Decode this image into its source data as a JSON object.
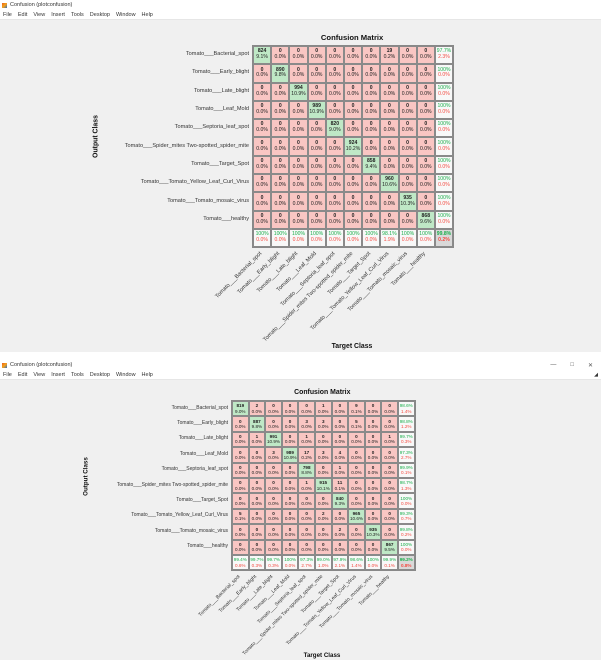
{
  "windows": [
    {
      "title": "Confusion (plotconfusion)",
      "menu": [
        "File",
        "Edit",
        "View",
        "Insert",
        "Tools",
        "Desktop",
        "Window",
        "Help"
      ],
      "controls": [],
      "chart_title": "Confusion Matrix",
      "ylabel": "Output Class",
      "xlabel": "Target Class"
    },
    {
      "title": "Confusion (plotconfusion)",
      "menu": [
        "File",
        "Edit",
        "View",
        "Insert",
        "Tools",
        "Desktop",
        "Window",
        "Help"
      ],
      "controls": [
        "—",
        "□",
        "✕"
      ],
      "chart_title": "Confusion Matrix",
      "ylabel": "Output Class",
      "xlabel": "Target Class"
    }
  ],
  "classes": [
    "Tomato___Bacterial_spot",
    "Tomato___Early_blight",
    "Tomato___Late_blight",
    "Tomato___Leaf_Mold",
    "Tomato___Septoria_leaf_spot",
    "Tomato___Spider_mites Two-spotted_spider_mite",
    "Tomato___Target_Spot",
    "Tomato___Tomato_Yellow_Leaf_Curl_Virus",
    "Tomato___Tomato_mosaic_virus",
    "Tomato___healthy"
  ],
  "colors": {
    "diag": "#bfe8c6",
    "off": "#f9c6c3",
    "good": "#1aaf4b",
    "bad": "#f44b41"
  },
  "chart_data": [
    {
      "type": "heatmap",
      "title": "Confusion Matrix",
      "xlabel": "Target Class",
      "ylabel": "Output Class",
      "matrix": [
        [
          824,
          0,
          0,
          0,
          0,
          0,
          0,
          19,
          0,
          0
        ],
        [
          0,
          890,
          0,
          0,
          0,
          0,
          0,
          0,
          0,
          0
        ],
        [
          0,
          0,
          994,
          0,
          0,
          0,
          0,
          0,
          0,
          0
        ],
        [
          0,
          0,
          0,
          989,
          0,
          0,
          0,
          0,
          0,
          0
        ],
        [
          0,
          0,
          0,
          0,
          820,
          0,
          0,
          0,
          0,
          0
        ],
        [
          0,
          0,
          0,
          0,
          0,
          924,
          0,
          0,
          0,
          0
        ],
        [
          0,
          0,
          0,
          0,
          0,
          0,
          858,
          0,
          0,
          0
        ],
        [
          0,
          0,
          0,
          0,
          0,
          0,
          0,
          960,
          0,
          0
        ],
        [
          0,
          0,
          0,
          0,
          0,
          0,
          0,
          0,
          935,
          0
        ],
        [
          0,
          0,
          0,
          0,
          0,
          0,
          0,
          0,
          0,
          868
        ]
      ],
      "pct": [
        [
          "9.1%",
          "0.0%",
          "0.0%",
          "0.0%",
          "0.0%",
          "0.0%",
          "0.0%",
          "0.2%",
          "0.0%",
          "0.0%"
        ],
        [
          "0.0%",
          "9.8%",
          "0.0%",
          "0.0%",
          "0.0%",
          "0.0%",
          "0.0%",
          "0.0%",
          "0.0%",
          "0.0%"
        ],
        [
          "0.0%",
          "0.0%",
          "10.9%",
          "0.0%",
          "0.0%",
          "0.0%",
          "0.0%",
          "0.0%",
          "0.0%",
          "0.0%"
        ],
        [
          "0.0%",
          "0.0%",
          "0.0%",
          "10.9%",
          "0.0%",
          "0.0%",
          "0.0%",
          "0.0%",
          "0.0%",
          "0.0%"
        ],
        [
          "0.0%",
          "0.0%",
          "0.0%",
          "0.0%",
          "9.0%",
          "0.0%",
          "0.0%",
          "0.0%",
          "0.0%",
          "0.0%"
        ],
        [
          "0.0%",
          "0.0%",
          "0.0%",
          "0.0%",
          "0.0%",
          "10.2%",
          "0.0%",
          "0.0%",
          "0.0%",
          "0.0%"
        ],
        [
          "0.0%",
          "0.0%",
          "0.0%",
          "0.0%",
          "0.0%",
          "0.0%",
          "9.4%",
          "0.0%",
          "0.0%",
          "0.0%"
        ],
        [
          "0.0%",
          "0.0%",
          "0.0%",
          "0.0%",
          "0.0%",
          "0.0%",
          "0.0%",
          "10.6%",
          "0.0%",
          "0.0%"
        ],
        [
          "0.0%",
          "0.0%",
          "0.0%",
          "0.0%",
          "0.0%",
          "0.0%",
          "0.0%",
          "0.0%",
          "10.3%",
          "0.0%"
        ],
        [
          "0.0%",
          "0.0%",
          "0.0%",
          "0.0%",
          "0.0%",
          "0.0%",
          "0.0%",
          "0.0%",
          "0.0%",
          "9.6%"
        ]
      ],
      "row_summary": [
        [
          "97.7%",
          "2.3%"
        ],
        [
          "100%",
          "0.0%"
        ],
        [
          "100%",
          "0.0%"
        ],
        [
          "100%",
          "0.0%"
        ],
        [
          "100%",
          "0.0%"
        ],
        [
          "100%",
          "0.0%"
        ],
        [
          "100%",
          "0.0%"
        ],
        [
          "100%",
          "0.0%"
        ],
        [
          "100%",
          "0.0%"
        ],
        [
          "100%",
          "0.0%"
        ]
      ],
      "col_summary": [
        [
          "100%",
          "0.0%"
        ],
        [
          "100%",
          "0.0%"
        ],
        [
          "100%",
          "0.0%"
        ],
        [
          "100%",
          "0.0%"
        ],
        [
          "100%",
          "0.0%"
        ],
        [
          "100%",
          "0.0%"
        ],
        [
          "100%",
          "0.0%"
        ],
        [
          "98.1%",
          "1.9%"
        ],
        [
          "100%",
          "0.0%"
        ],
        [
          "100%",
          "0.0%"
        ]
      ],
      "total": [
        "99.8%",
        "0.2%"
      ]
    },
    {
      "type": "heatmap",
      "title": "Confusion Matrix",
      "xlabel": "Target Class",
      "ylabel": "Output Class",
      "matrix": [
        [
          819,
          2,
          0,
          0,
          0,
          1,
          0,
          9,
          0,
          0
        ],
        [
          0,
          887,
          0,
          0,
          3,
          3,
          0,
          5,
          0,
          0
        ],
        [
          0,
          1,
          991,
          0,
          1,
          0,
          0,
          0,
          0,
          1
        ],
        [
          0,
          0,
          3,
          989,
          17,
          3,
          4,
          0,
          0,
          0
        ],
        [
          0,
          0,
          0,
          0,
          798,
          0,
          1,
          0,
          0,
          0
        ],
        [
          0,
          0,
          0,
          0,
          1,
          915,
          11,
          0,
          0,
          0
        ],
        [
          0,
          0,
          0,
          0,
          0,
          0,
          840,
          0,
          0,
          0
        ],
        [
          5,
          0,
          0,
          0,
          0,
          2,
          0,
          965,
          0,
          0
        ],
        [
          0,
          0,
          0,
          0,
          0,
          0,
          2,
          0,
          935,
          0
        ],
        [
          0,
          0,
          0,
          0,
          0,
          0,
          0,
          0,
          0,
          867
        ]
      ],
      "pct": [
        [
          "9.0%",
          "0.0%",
          "0.0%",
          "0.0%",
          "0.0%",
          "0.0%",
          "0.0%",
          "0.1%",
          "0.0%",
          "0.0%"
        ],
        [
          "0.0%",
          "9.8%",
          "0.0%",
          "0.0%",
          "0.0%",
          "0.0%",
          "0.0%",
          "0.1%",
          "0.0%",
          "0.0%"
        ],
        [
          "0.0%",
          "0.0%",
          "10.9%",
          "0.0%",
          "0.0%",
          "0.0%",
          "0.0%",
          "0.0%",
          "0.0%",
          "0.0%"
        ],
        [
          "0.0%",
          "0.0%",
          "0.0%",
          "10.9%",
          "0.2%",
          "0.0%",
          "0.0%",
          "0.0%",
          "0.0%",
          "0.0%"
        ],
        [
          "0.0%",
          "0.0%",
          "0.0%",
          "0.0%",
          "8.8%",
          "0.0%",
          "0.0%",
          "0.0%",
          "0.0%",
          "0.0%"
        ],
        [
          "0.0%",
          "0.0%",
          "0.0%",
          "0.0%",
          "0.0%",
          "10.1%",
          "0.1%",
          "0.0%",
          "0.0%",
          "0.0%"
        ],
        [
          "0.0%",
          "0.0%",
          "0.0%",
          "0.0%",
          "0.0%",
          "0.0%",
          "9.3%",
          "0.0%",
          "0.0%",
          "0.0%"
        ],
        [
          "0.1%",
          "0.0%",
          "0.0%",
          "0.0%",
          "0.0%",
          "0.0%",
          "0.0%",
          "10.6%",
          "0.0%",
          "0.0%"
        ],
        [
          "0.0%",
          "0.0%",
          "0.0%",
          "0.0%",
          "0.0%",
          "0.0%",
          "0.0%",
          "0.0%",
          "10.3%",
          "0.0%"
        ],
        [
          "0.0%",
          "0.0%",
          "0.0%",
          "0.0%",
          "0.0%",
          "0.0%",
          "0.0%",
          "0.0%",
          "0.0%",
          "9.5%"
        ]
      ],
      "row_summary": [
        [
          "98.6%",
          "1.4%"
        ],
        [
          "98.8%",
          "1.2%"
        ],
        [
          "99.7%",
          "0.3%"
        ],
        [
          "97.3%",
          "2.7%"
        ],
        [
          "99.9%",
          "0.1%"
        ],
        [
          "98.7%",
          "1.3%"
        ],
        [
          "100%",
          "0.0%"
        ],
        [
          "99.3%",
          "0.7%"
        ],
        [
          "99.8%",
          "0.2%"
        ],
        [
          "100%",
          "0.0%"
        ]
      ],
      "col_summary": [
        [
          "99.4%",
          "0.6%"
        ],
        [
          "99.7%",
          "0.3%"
        ],
        [
          "99.7%",
          "0.3%"
        ],
        [
          "100%",
          "0.0%"
        ],
        [
          "97.3%",
          "2.7%"
        ],
        [
          "99.0%",
          "1.0%"
        ],
        [
          "97.9%",
          "2.1%"
        ],
        [
          "98.6%",
          "1.4%"
        ],
        [
          "100%",
          "0.0%"
        ],
        [
          "99.9%",
          "0.1%"
        ]
      ],
      "total": [
        "99.2%",
        "0.8%"
      ]
    }
  ]
}
